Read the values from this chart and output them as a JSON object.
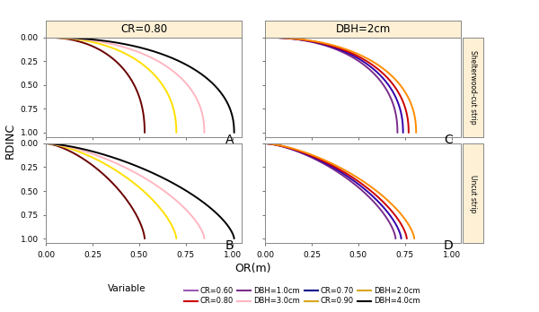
{
  "title_A": "CR=0.80",
  "title_C": "DBH=2cm",
  "label_right_top": "Shelterwood-cut strip",
  "label_right_bottom": "Uncut strip",
  "ylabel": "RDINC",
  "xlabel": "OR(m)",
  "background_color": "#ffffff",
  "header_color": "#fdf0d5",
  "xlim": [
    0.0,
    1.05
  ],
  "ylim": [
    0.0,
    1.05
  ],
  "cr_params_A": [
    {
      "label": "CR=0.60",
      "color": "#6B0000",
      "max_or": 0.53,
      "alpha": 2.2
    },
    {
      "label": "CR=0.70",
      "color": "#FFE000",
      "max_or": 0.7,
      "alpha": 2.2
    },
    {
      "label": "CR=0.80",
      "color": "#FFB6C1",
      "max_or": 0.85,
      "alpha": 2.2
    },
    {
      "label": "CR=0.90",
      "color": "#000000",
      "max_or": 1.01,
      "alpha": 2.2
    }
  ],
  "cr_params_B": [
    {
      "label": "CR=0.60",
      "color": "#6B0000",
      "max_or": 0.53,
      "alpha": 1.5
    },
    {
      "label": "CR=0.70",
      "color": "#FFE000",
      "max_or": 0.7,
      "alpha": 1.5
    },
    {
      "label": "CR=0.80",
      "color": "#FFB6C1",
      "max_or": 0.85,
      "alpha": 1.5
    },
    {
      "label": "CR=0.90",
      "color": "#000000",
      "max_or": 1.01,
      "alpha": 1.5
    }
  ],
  "dbh_params_C": [
    {
      "label": "DBH=1.0cm",
      "color": "#7B2D8B",
      "max_or": 0.71,
      "alpha": 2.2
    },
    {
      "label": "DBH=2.0cm",
      "color": "#3300AA",
      "max_or": 0.74,
      "alpha": 2.2
    },
    {
      "label": "DBH=3.0cm",
      "color": "#CC0000",
      "max_or": 0.77,
      "alpha": 2.2
    },
    {
      "label": "DBH=4.0cm",
      "color": "#FF8C00",
      "max_or": 0.81,
      "alpha": 2.2
    }
  ],
  "dbh_params_D": [
    {
      "label": "DBH=1.0cm",
      "color": "#7B2D8B",
      "max_or": 0.7,
      "alpha": 1.5
    },
    {
      "label": "DBH=2.0cm",
      "color": "#3300AA",
      "max_or": 0.73,
      "alpha": 1.5
    },
    {
      "label": "DBH=3.0cm",
      "color": "#CC0000",
      "max_or": 0.76,
      "alpha": 1.5
    },
    {
      "label": "DBH=4.0cm",
      "color": "#FF8C00",
      "max_or": 0.8,
      "alpha": 1.5
    }
  ],
  "legend_entries_row1": [
    {
      "label": "CR=0.60",
      "color": "#9B59B6"
    },
    {
      "label": "CR=0.80",
      "color": "#CC0000"
    },
    {
      "label": "DBH=1.0cm",
      "color": "#7B2D8B"
    },
    {
      "label": "DBH=3.0cm",
      "color": "#FFB6C1"
    }
  ],
  "legend_entries_row2": [
    {
      "label": "CR=0.70",
      "color": "#00008B"
    },
    {
      "label": "CR=0.90",
      "color": "#DAA520"
    },
    {
      "label": "DBH=2.0cm",
      "color": "#DAA520"
    },
    {
      "label": "DBH=4.0cm",
      "color": "#000000"
    }
  ]
}
